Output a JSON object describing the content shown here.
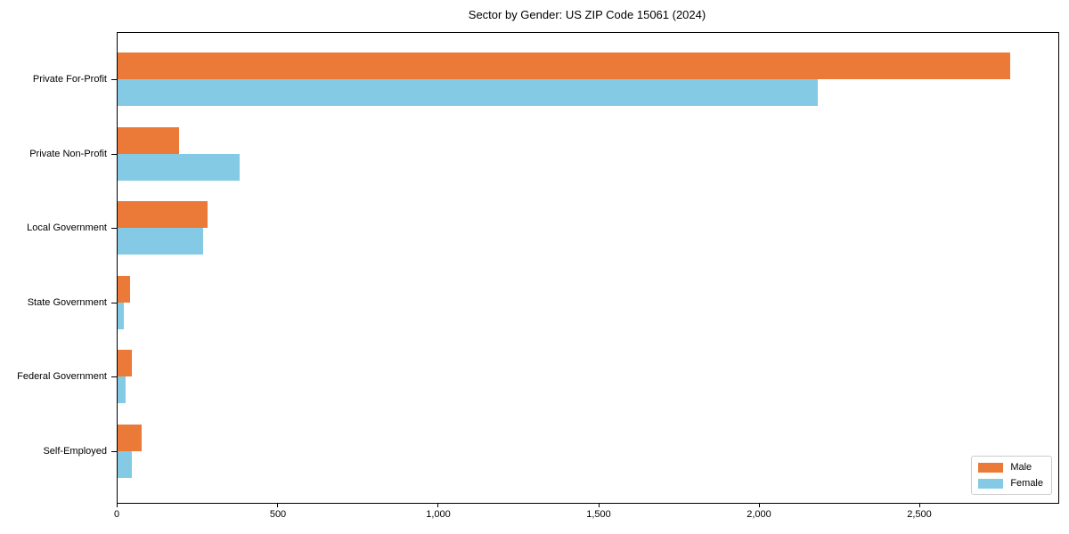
{
  "figure": {
    "title": "Sector by Gender: US ZIP Code 15061 (2024)"
  },
  "colors": {
    "male": "#eb7a38",
    "female": "#85cae5",
    "axis": "#000000",
    "legend_border": "#cccccc",
    "background": "#ffffff"
  },
  "legend": {
    "position": "lower-right",
    "items": [
      {
        "label": "Male",
        "color": "#eb7a38"
      },
      {
        "label": "Female",
        "color": "#85cae5"
      }
    ]
  },
  "chart_data": {
    "type": "bar",
    "orientation": "horizontal",
    "title": "Sector by Gender: US ZIP Code 15061 (2024)",
    "categories": [
      "Private For-Profit",
      "Private Non-Profit",
      "Local Government",
      "State Government",
      "Federal Government",
      "Self-Employed"
    ],
    "series": [
      {
        "name": "Male",
        "color": "#eb7a38",
        "values": [
          2780,
          190,
          280,
          40,
          45,
          75
        ]
      },
      {
        "name": "Female",
        "color": "#85cae5",
        "values": [
          2180,
          380,
          265,
          20,
          25,
          45
        ]
      }
    ],
    "xlabel": "",
    "ylabel": "",
    "xlim": [
      0,
      2930
    ],
    "xticks": [
      0,
      500,
      1000,
      1500,
      2000,
      2500
    ],
    "xtick_labels": [
      "0",
      "500",
      "1,000",
      "1,500",
      "2,000",
      "2,500"
    ],
    "grid": false,
    "legend_position": "lower right"
  }
}
